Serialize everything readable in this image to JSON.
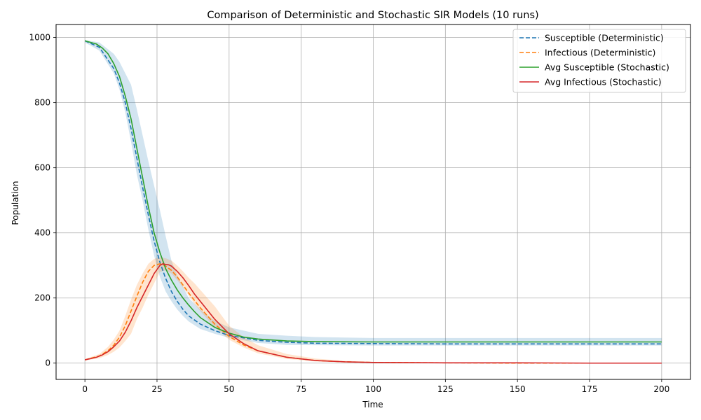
{
  "chart_data": {
    "type": "line",
    "title": "Comparison of Deterministic and Stochastic SIR Models (10 runs)",
    "xlabel": "Time",
    "ylabel": "Population",
    "xlim": [
      -10,
      210
    ],
    "ylim": [
      -50,
      1040
    ],
    "xticks": [
      0,
      25,
      50,
      75,
      100,
      125,
      150,
      175,
      200
    ],
    "yticks": [
      0,
      200,
      400,
      600,
      800,
      1000
    ],
    "grid": true,
    "legend_position": "top-right",
    "series": [
      {
        "name": "Susceptible (Deterministic)",
        "color": "#1f77b4",
        "style": "dashed",
        "x": [
          0,
          5,
          10,
          12,
          14,
          16,
          18,
          20,
          22,
          24,
          26,
          28,
          30,
          32,
          34,
          36,
          40,
          45,
          50,
          60,
          70,
          80,
          100,
          125,
          150,
          175,
          200
        ],
        "y": [
          990,
          970,
          905,
          860,
          800,
          720,
          630,
          540,
          455,
          375,
          310,
          260,
          220,
          190,
          165,
          145,
          120,
          100,
          85,
          70,
          64,
          61,
          60,
          59,
          59,
          59,
          59
        ]
      },
      {
        "name": "Infectious (Deterministic)",
        "color": "#ff7f0e",
        "style": "dashed",
        "x": [
          0,
          5,
          8,
          10,
          12,
          14,
          16,
          18,
          20,
          22,
          24,
          26,
          27,
          28,
          30,
          32,
          34,
          36,
          40,
          45,
          50,
          55,
          60,
          70,
          80,
          90,
          100,
          125,
          150,
          200
        ],
        "y": [
          10,
          22,
          38,
          55,
          80,
          115,
          160,
          205,
          248,
          282,
          300,
          305,
          303,
          298,
          285,
          265,
          240,
          215,
          170,
          120,
          82,
          56,
          38,
          18,
          8,
          4,
          2,
          1,
          0,
          0
        ]
      },
      {
        "name": "Avg Susceptible (Stochastic)",
        "color": "#2ca02c",
        "style": "solid",
        "x": [
          0,
          4,
          6,
          8,
          10,
          12,
          14,
          16,
          18,
          20,
          22,
          24,
          26,
          28,
          30,
          32,
          34,
          36,
          38,
          40,
          45,
          50,
          55,
          60,
          70,
          80,
          100,
          125,
          150,
          175,
          200
        ],
        "y": [
          990,
          980,
          968,
          950,
          920,
          880,
          820,
          750,
          660,
          570,
          480,
          400,
          340,
          290,
          255,
          225,
          200,
          178,
          158,
          140,
          110,
          92,
          80,
          74,
          68,
          66,
          65,
          65,
          65,
          65,
          65
        ]
      },
      {
        "name": "Avg Infectious (Stochastic)",
        "color": "#d62728",
        "style": "solid",
        "x": [
          0,
          4,
          6,
          8,
          10,
          12,
          14,
          16,
          18,
          20,
          22,
          24,
          26,
          27,
          28,
          29,
          30,
          32,
          34,
          36,
          38,
          40,
          45,
          50,
          55,
          60,
          70,
          80,
          90,
          100,
          125,
          150,
          175,
          200
        ],
        "y": [
          10,
          18,
          25,
          35,
          50,
          68,
          95,
          130,
          170,
          205,
          240,
          275,
          300,
          305,
          303,
          302,
          298,
          282,
          262,
          238,
          212,
          190,
          135,
          90,
          60,
          38,
          18,
          8,
          4,
          2,
          1,
          1,
          0,
          0
        ]
      }
    ],
    "bands": [
      {
        "color": "#1f77b4",
        "opacity": 0.2,
        "x": [
          0,
          5,
          10,
          12,
          14,
          16,
          18,
          20,
          22,
          24,
          26,
          28,
          30,
          32,
          34,
          36,
          40,
          45,
          50,
          60,
          70,
          80,
          100,
          125,
          150,
          175,
          200
        ],
        "lower": [
          985,
          960,
          890,
          840,
          770,
          680,
          580,
          500,
          410,
          330,
          265,
          220,
          190,
          165,
          145,
          128,
          105,
          90,
          78,
          62,
          56,
          55,
          54,
          54,
          54,
          54,
          54
        ],
        "upper": [
          992,
          985,
          950,
          925,
          890,
          855,
          780,
          700,
          620,
          545,
          470,
          390,
          315,
          270,
          235,
          200,
          165,
          130,
          110,
          90,
          84,
          80,
          77,
          77,
          77,
          77,
          77
        ]
      },
      {
        "color": "#ff7f0e",
        "opacity": 0.2,
        "x": [
          0,
          5,
          8,
          10,
          12,
          14,
          16,
          18,
          20,
          22,
          24,
          26,
          28,
          30,
          32,
          34,
          36,
          38,
          40,
          45,
          50,
          55,
          60,
          70,
          80,
          90,
          100,
          125,
          150,
          200
        ],
        "lower": [
          8,
          15,
          25,
          35,
          48,
          68,
          90,
          135,
          170,
          210,
          245,
          280,
          285,
          275,
          255,
          232,
          208,
          182,
          160,
          110,
          72,
          48,
          30,
          13,
          5,
          2,
          1,
          0,
          0,
          0
        ],
        "upper": [
          12,
          28,
          50,
          72,
          100,
          145,
          195,
          240,
          275,
          305,
          320,
          325,
          322,
          315,
          300,
          282,
          262,
          245,
          225,
          175,
          115,
          80,
          55,
          28,
          14,
          7,
          4,
          2,
          1,
          1
        ]
      }
    ]
  }
}
